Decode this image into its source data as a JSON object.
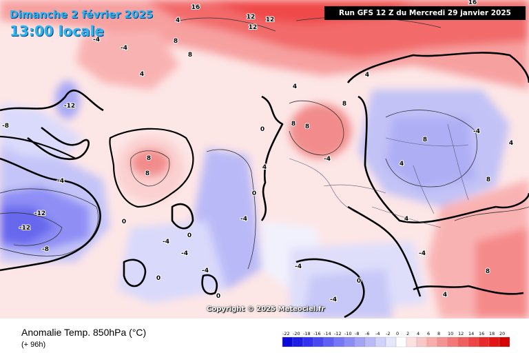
{
  "header": {
    "date_label": "Dimanche 2 février 2025",
    "time_label": "13:00 locale",
    "run_label": "Run GFS 12 Z du Mercredi 29 janvier 2025"
  },
  "copyright": "Copyright © 2025 Meteociel.fr",
  "footer": {
    "parameter_label": "Anomalie Temp. 850hPa (°C)",
    "lead_label": "(+ 96h)"
  },
  "color_scale": {
    "labels": [
      "-22",
      "-20",
      "-18",
      "-16",
      "-14",
      "-12",
      "-10",
      "-8",
      "-6",
      "-4",
      "-2",
      "0",
      "2",
      "4",
      "6",
      "8",
      "10",
      "12",
      "14",
      "16",
      "18",
      "20"
    ],
    "colors": [
      "#0b0bd9",
      "#1d1de6",
      "#3232ee",
      "#4848f2",
      "#5f5ff5",
      "#7676f6",
      "#8c8cf7",
      "#a3a3f8",
      "#babaf9",
      "#d1d1fb",
      "#e6e6fd",
      "#ffffff",
      "#fde0e0",
      "#fbc6c6",
      "#f9acac",
      "#f79292",
      "#f57878",
      "#f25e5e",
      "#ef4444",
      "#ea2a2a",
      "#e31414",
      "#d40000"
    ]
  },
  "anomaly_labels": [
    {
      "text": "16",
      "kind": "warm"
    },
    {
      "text": "12",
      "kind": "warm"
    },
    {
      "text": "12",
      "kind": "warm"
    },
    {
      "text": "12",
      "kind": "warm"
    },
    {
      "text": "16",
      "kind": "warm"
    },
    {
      "text": "4",
      "kind": "warm"
    },
    {
      "text": "4",
      "kind": "warm"
    },
    {
      "text": "8",
      "kind": "warm"
    },
    {
      "text": "8",
      "kind": "warm"
    },
    {
      "text": "8",
      "kind": "warm"
    },
    {
      "text": "8",
      "kind": "warm"
    },
    {
      "text": "4",
      "kind": "warm"
    },
    {
      "text": "4",
      "kind": "warm"
    },
    {
      "text": "4",
      "kind": "warm"
    },
    {
      "text": "-4",
      "kind": "cold"
    },
    {
      "text": "-4",
      "kind": "cold"
    },
    {
      "text": "-4",
      "kind": "cold"
    },
    {
      "text": "-4",
      "kind": "cold"
    },
    {
      "text": "-4",
      "kind": "cold"
    },
    {
      "text": "-8",
      "kind": "cold"
    },
    {
      "text": "-8",
      "kind": "cold"
    },
    {
      "text": "-12",
      "kind": "cold"
    },
    {
      "text": "-12",
      "kind": "cold"
    },
    {
      "text": "-12",
      "kind": "cold"
    },
    {
      "text": "0",
      "kind": "zero"
    },
    {
      "text": "0",
      "kind": "zero"
    },
    {
      "text": "0",
      "kind": "zero"
    },
    {
      "text": "0",
      "kind": "zero"
    },
    {
      "text": "0",
      "kind": "zero"
    },
    {
      "text": "0",
      "kind": "zero"
    },
    {
      "text": "8",
      "kind": "warm"
    },
    {
      "text": "8",
      "kind": "warm"
    },
    {
      "text": "4",
      "kind": "warm"
    },
    {
      "text": "-4",
      "kind": "cold"
    },
    {
      "text": "-4",
      "kind": "cold"
    },
    {
      "text": "-4",
      "kind": "cold"
    },
    {
      "text": "-4",
      "kind": "cold"
    },
    {
      "text": "4",
      "kind": "warm"
    },
    {
      "text": "0",
      "kind": "zero"
    },
    {
      "text": "8",
      "kind": "warm"
    },
    {
      "text": "8",
      "kind": "warm"
    },
    {
      "text": "4",
      "kind": "warm"
    },
    {
      "text": "-4",
      "kind": "cold"
    },
    {
      "text": "-4",
      "kind": "cold"
    },
    {
      "text": "-4",
      "kind": "cold"
    },
    {
      "text": "8",
      "kind": "warm"
    },
    {
      "text": "8",
      "kind": "warm"
    },
    {
      "text": "4",
      "kind": "warm"
    }
  ]
}
